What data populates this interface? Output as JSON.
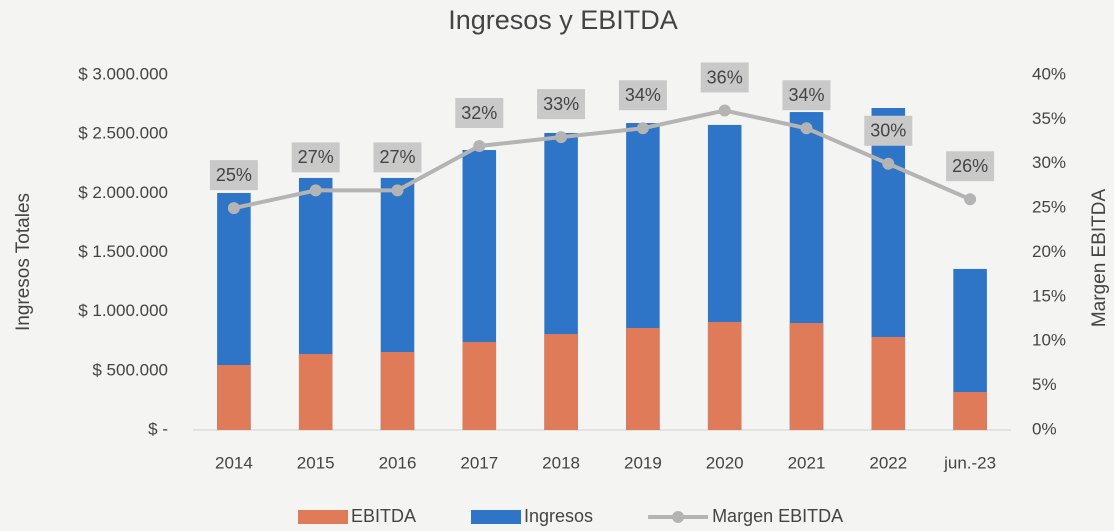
{
  "chart_data": {
    "type": "bar",
    "title": "Ingresos y EBITDA",
    "y_label": "Ingresos Totales",
    "y2_label": "Margen EBITDA",
    "categories": [
      "2014",
      "2015",
      "2016",
      "2017",
      "2018",
      "2019",
      "2020",
      "2021",
      "2022",
      "jun.-23"
    ],
    "series": [
      {
        "name": "EBITDA",
        "color": "#e07b5a",
        "values": [
          549000,
          642000,
          659000,
          744000,
          811000,
          862000,
          913000,
          904000,
          786000,
          321000
        ]
      },
      {
        "name": "Ingresos",
        "color": "#2e75c8",
        "values": [
          2003000,
          2130000,
          2130000,
          2366000,
          2510000,
          2594000,
          2578000,
          2687000,
          2721000,
          1361000
        ]
      },
      {
        "name": "Margen EBITDA",
        "type": "line",
        "axis": "y2",
        "color": "#b4b4b4",
        "values": [
          25,
          27,
          27,
          32,
          33,
          34,
          36,
          34,
          30,
          26
        ],
        "value_labels": [
          "25%",
          "27%",
          "27%",
          "32%",
          "33%",
          "34%",
          "36%",
          "34%",
          "30%",
          "26%"
        ]
      }
    ],
    "overlap": true,
    "ylim": [
      0,
      3000000
    ],
    "yticks": [
      {
        "value": 0,
        "label": "$ -"
      },
      {
        "value": 500000,
        "label": "$ 500.000"
      },
      {
        "value": 1000000,
        "label": "$ 1.000.000"
      },
      {
        "value": 1500000,
        "label": "$ 1.500.000"
      },
      {
        "value": 2000000,
        "label": "$ 2.000.000"
      },
      {
        "value": 2500000,
        "label": "$ 2.500.000"
      },
      {
        "value": 3000000,
        "label": "$ 3.000.000"
      }
    ],
    "y2lim": [
      0,
      40
    ],
    "y2ticks": [
      {
        "value": 0,
        "label": "0%"
      },
      {
        "value": 5,
        "label": "5%"
      },
      {
        "value": 10,
        "label": "10%"
      },
      {
        "value": 15,
        "label": "15%"
      },
      {
        "value": 20,
        "label": "20%"
      },
      {
        "value": 25,
        "label": "25%"
      },
      {
        "value": 30,
        "label": "30%"
      },
      {
        "value": 35,
        "label": "35%"
      },
      {
        "value": 40,
        "label": "40%"
      }
    ],
    "legend": "bottom",
    "grid": false
  }
}
